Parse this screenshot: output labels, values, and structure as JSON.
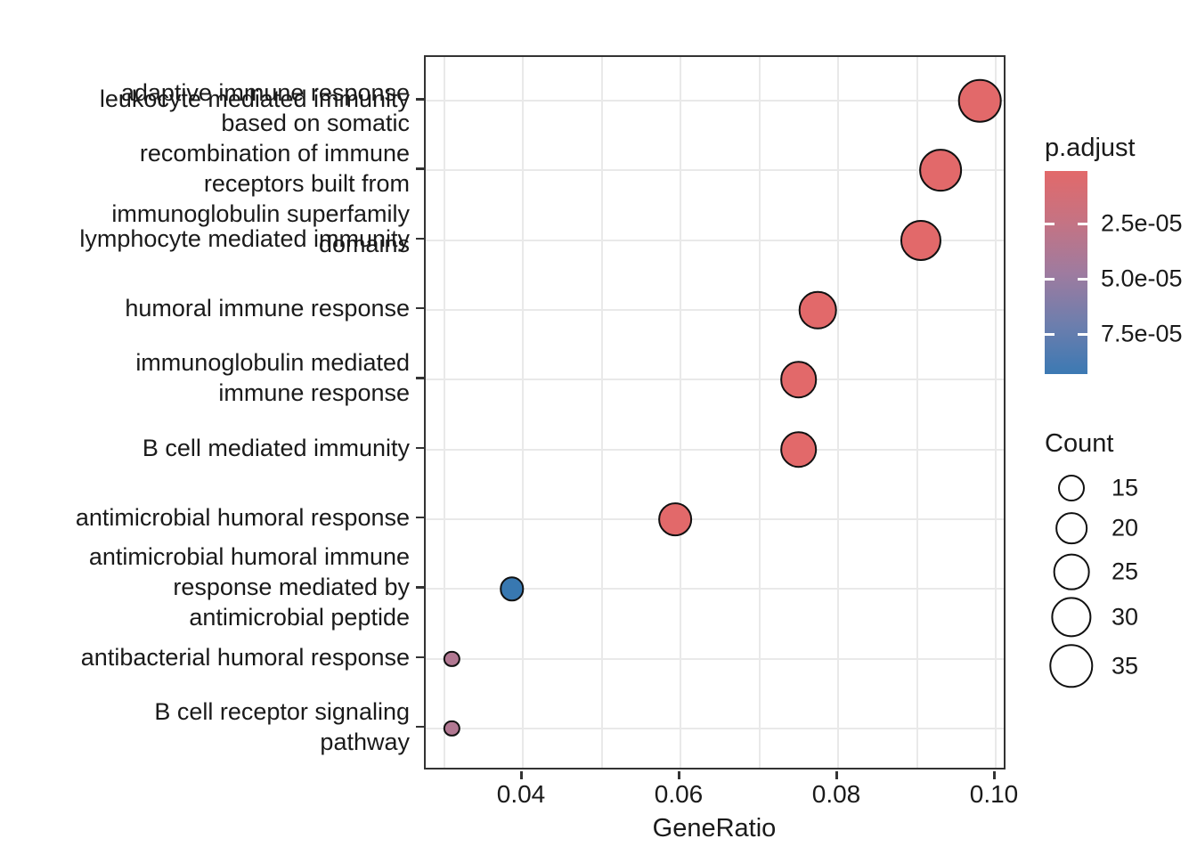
{
  "chart_data": {
    "type": "scatter",
    "subtype": "enrichment-dotplot",
    "title": "",
    "xlabel": "GeneRatio",
    "ylabel": "",
    "xlim": [
      0.0277,
      0.1016
    ],
    "x_major_ticks": [
      0.04,
      0.06,
      0.08,
      0.1
    ],
    "x_tick_labels": [
      "0.04",
      "0.06",
      "0.08",
      "0.10"
    ],
    "x_minor_step": 0.01,
    "grid": true,
    "legend_position": "right",
    "points": [
      {
        "term": "leukocyte mediated immunity",
        "label_lines": [
          "leukocyte mediated immunity"
        ],
        "gene_ratio": 0.098,
        "count": 34,
        "p_adjust": 4e-06,
        "color": "#E2696A"
      },
      {
        "term": "adaptive immune response based on somatic recombination of immune receptors built from immunoglobulin superfamily domains",
        "label_lines": [
          "adaptive immune response",
          "based on somatic",
          "recombination of immune",
          "receptors built from",
          "immunoglobulin superfamily",
          "domains"
        ],
        "gene_ratio": 0.093,
        "count": 33,
        "p_adjust": 4e-06,
        "color": "#E2696A"
      },
      {
        "term": "lymphocyte mediated immunity",
        "label_lines": [
          "lymphocyte mediated immunity"
        ],
        "gene_ratio": 0.0905,
        "count": 31,
        "p_adjust": 5e-06,
        "color": "#E2696A"
      },
      {
        "term": "humoral immune response",
        "label_lines": [
          "humoral immune response"
        ],
        "gene_ratio": 0.0774,
        "count": 27,
        "p_adjust": 7e-06,
        "color": "#E2696A"
      },
      {
        "term": "immunoglobulin mediated immune response",
        "label_lines": [
          "immunoglobulin mediated",
          "immune response"
        ],
        "gene_ratio": 0.075,
        "count": 26,
        "p_adjust": 6e-06,
        "color": "#E2696A"
      },
      {
        "term": "B cell mediated immunity",
        "label_lines": [
          "B cell mediated immunity"
        ],
        "gene_ratio": 0.075,
        "count": 26,
        "p_adjust": 6e-06,
        "color": "#E2696A"
      },
      {
        "term": "antimicrobial humoral response",
        "label_lines": [
          "antimicrobial humoral response"
        ],
        "gene_ratio": 0.0593,
        "count": 22,
        "p_adjust": 9e-06,
        "color": "#E2696A"
      },
      {
        "term": "antimicrobial humoral immune response mediated by antimicrobial peptide",
        "label_lines": [
          "antimicrobial humoral immune",
          "response mediated by",
          "antimicrobial peptide"
        ],
        "gene_ratio": 0.0386,
        "count": 13,
        "p_adjust": 9e-05,
        "color": "#3878B1"
      },
      {
        "term": "antibacterial humoral response",
        "label_lines": [
          "antibacterial humoral response"
        ],
        "gene_ratio": 0.031,
        "count": 7,
        "p_adjust": 4.5e-05,
        "color": "#B27892"
      },
      {
        "term": "B cell receptor signaling pathway",
        "label_lines": [
          "B cell receptor signaling",
          "pathway"
        ],
        "gene_ratio": 0.031,
        "count": 7,
        "p_adjust": 4.5e-05,
        "color": "#B27892"
      }
    ],
    "legend_p_adjust": {
      "title": "p.adjust",
      "tick_labels": [
        "2.5e-05",
        "5.0e-05",
        "7.5e-05"
      ],
      "tick_values": [
        2.5e-05,
        5e-05,
        7.5e-05
      ],
      "scale_domain": [
        1e-06,
        9.3e-05
      ],
      "gradient_stops": [
        "#E2696A",
        "#C57383",
        "#9F7B9F",
        "#6E7EAD",
        "#3C79B3"
      ]
    },
    "legend_count": {
      "title": "Count",
      "items": [
        15,
        20,
        25,
        30,
        35
      ]
    }
  }
}
